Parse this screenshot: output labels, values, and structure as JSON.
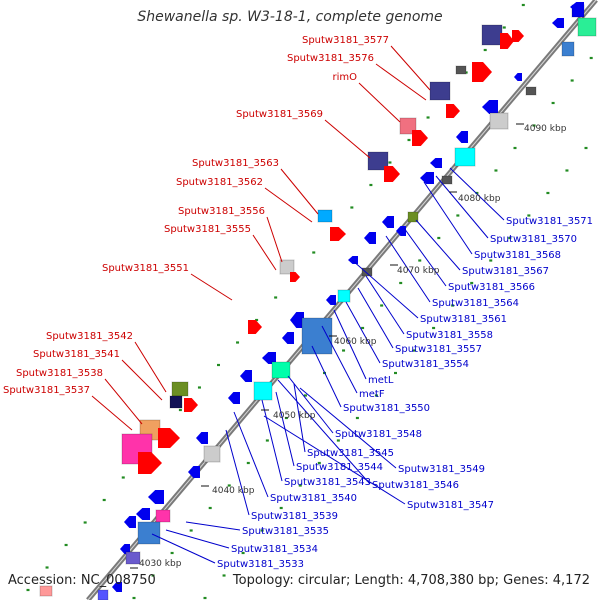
{
  "title": "Shewanella sp. W3-18-1, complete genome",
  "footer": {
    "accession": "Accession: NC_008750",
    "topology": "Topology: circular; Length: 4,708,380 bp; Genes: 4,172"
  },
  "colors": {
    "backbone": "#7a7a7a",
    "label_left": "#cc0000",
    "label_right": "#0000cc",
    "forward_gene": "#ff0000",
    "reverse_gene": "#0000ee",
    "tick": "#228b22"
  },
  "kbp_markers": [
    "4030 kbp",
    "4040 kbp",
    "4050 kbp",
    "4060 kbp",
    "4070 kbp",
    "4080 kbp",
    "4090 kbp"
  ],
  "left_labels": [
    "Sputw3181_3577",
    "Sputw3181_3576",
    "rimO",
    "Sputw3181_3569",
    "Sputw3181_3563",
    "Sputw3181_3562",
    "Sputw3181_3556",
    "Sputw3181_3555",
    "Sputw3181_3551",
    "Sputw3181_3542",
    "Sputw3181_3541",
    "Sputw3181_3538",
    "Sputw3181_3537"
  ],
  "right_labels": [
    "Sputw3181_3571",
    "Sputw3181_3570",
    "Sputw3181_3568",
    "Sputw3181_3567",
    "Sputw3181_3566",
    "Sputw3181_3564",
    "Sputw3181_3561",
    "Sputw3181_3558",
    "Sputw3181_3557",
    "Sputw3181_3554",
    "metL",
    "metF",
    "Sputw3181_3550",
    "Sputw3181_3548",
    "Sputw3181_3549",
    "Sputw3181_3545",
    "Sputw3181_3544",
    "Sputw3181_3546",
    "Sputw3181_3543",
    "Sputw3181_3547",
    "Sputw3181_3540",
    "Sputw3181_3539",
    "Sputw3181_3535",
    "Sputw3181_3534",
    "Sputw3181_3533"
  ]
}
